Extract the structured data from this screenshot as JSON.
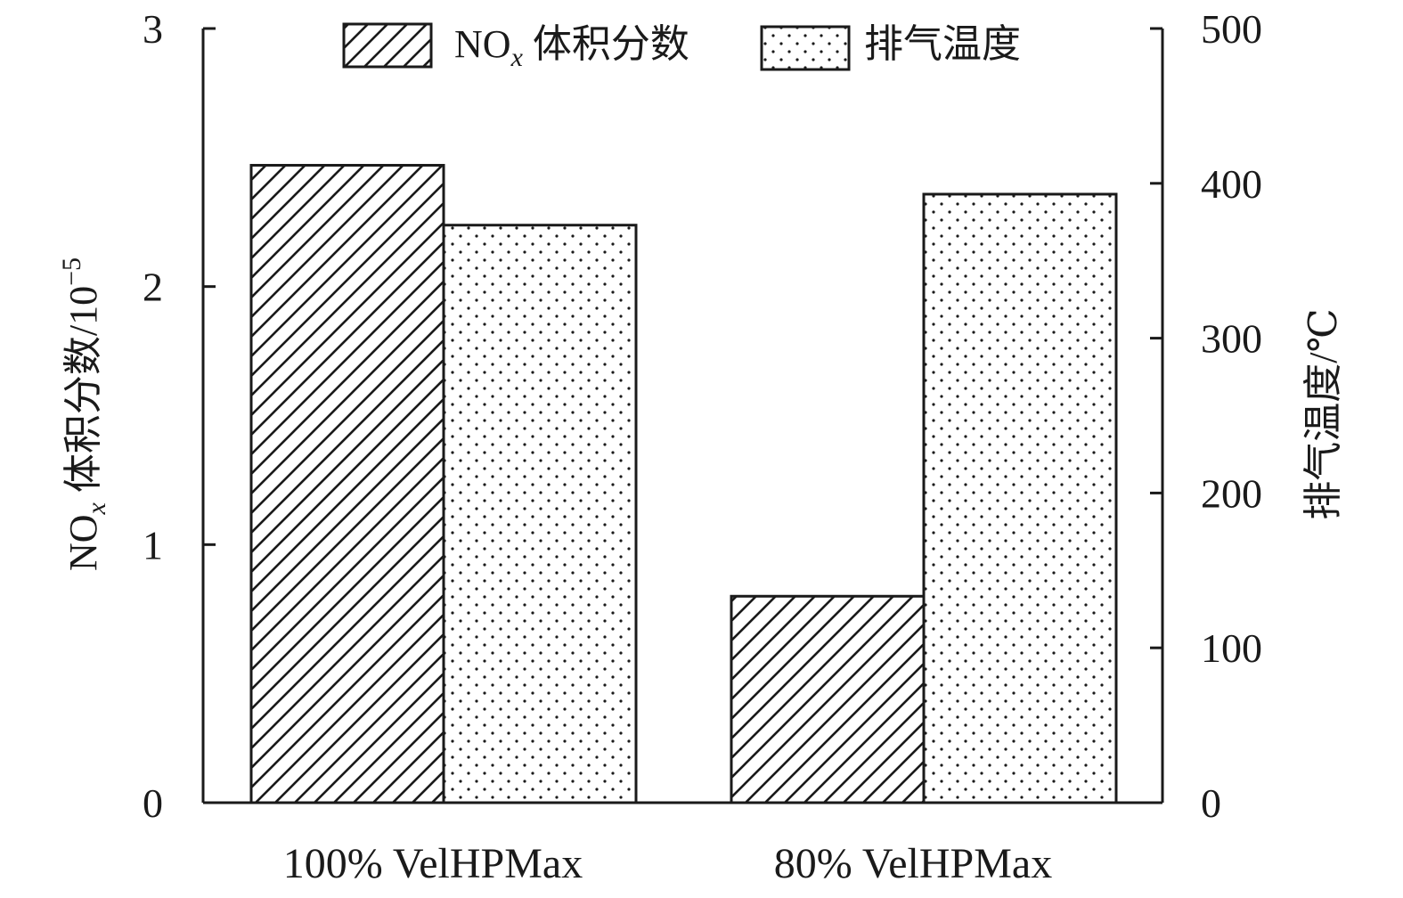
{
  "chart_data": {
    "type": "bar",
    "categories": [
      "100% VelHPMax",
      "80% VelHPMax"
    ],
    "series": [
      {
        "name": "NOx 体积分数",
        "legend_main": "NO",
        "legend_sub": "x",
        "legend_rest": " 体积分数",
        "axis": "left",
        "pattern": "hatch",
        "values": [
          2.47,
          0.8
        ]
      },
      {
        "name": "排气温度",
        "axis": "right",
        "pattern": "dots",
        "values": [
          373,
          393
        ]
      }
    ],
    "y_left": {
      "label_main": "NO",
      "label_sub": "x",
      "label_rest": " 体积分数/10",
      "label_sup": "−5",
      "ylim": [
        0,
        3
      ],
      "ticks": [
        "0",
        "1",
        "2",
        "3"
      ]
    },
    "y_right": {
      "label": "排气温度/℃",
      "ylim": [
        0,
        500
      ],
      "ticks": [
        "0",
        "100",
        "200",
        "300",
        "400",
        "500"
      ]
    },
    "grid": false,
    "legend_position": "top"
  }
}
